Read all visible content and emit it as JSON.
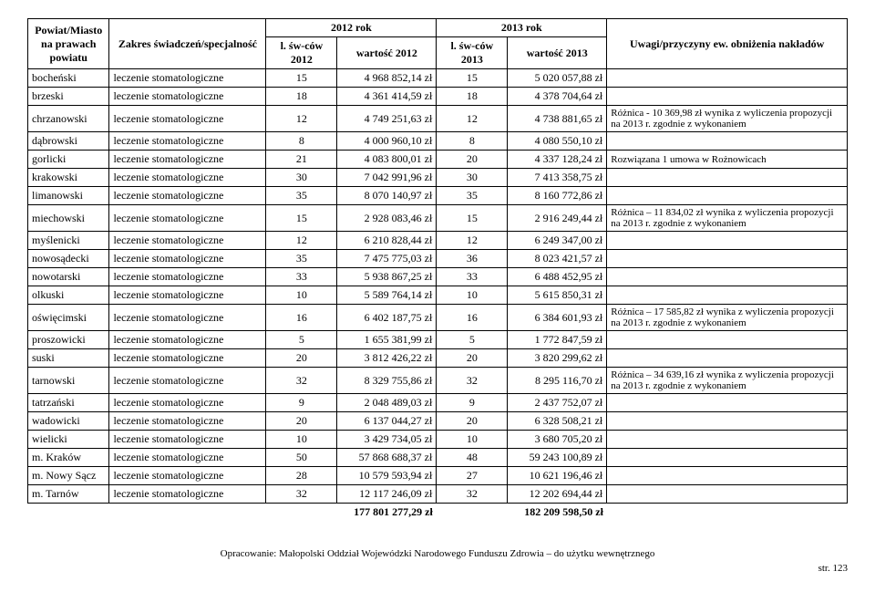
{
  "headers": {
    "powiat": "Powiat/Miasto na prawach powiatu",
    "zakres": "Zakres świadczeń/specjalność",
    "rok2012": "2012 rok",
    "rok2013": "2013 rok",
    "sw2012": "l. św-ców 2012",
    "wart2012": "wartość 2012",
    "sw2013": "l. św-ców 2013",
    "wart2013": "wartość 2013",
    "uwagi": "Uwagi/przyczyny ew. obniżenia nakładów"
  },
  "rows": [
    {
      "p": "bocheński",
      "z": "leczenie stomatologiczne",
      "s12": "15",
      "w12": "4 968 852,14 zł",
      "s13": "15",
      "w13": "5 020 057,88 zł",
      "u": ""
    },
    {
      "p": "brzeski",
      "z": "leczenie stomatologiczne",
      "s12": "18",
      "w12": "4 361 414,59 zł",
      "s13": "18",
      "w13": "4 378 704,64 zł",
      "u": ""
    },
    {
      "p": "chrzanowski",
      "z": "leczenie stomatologiczne",
      "s12": "12",
      "w12": "4 749 251,63 zł",
      "s13": "12",
      "w13": "4 738 881,65 zł",
      "u": "Różnica - 10 369,98 zł wynika z wyliczenia propozycji na 2013 r. zgodnie z wykonaniem"
    },
    {
      "p": "dąbrowski",
      "z": "leczenie stomatologiczne",
      "s12": "8",
      "w12": "4 000 960,10 zł",
      "s13": "8",
      "w13": "4 080 550,10 zł",
      "u": ""
    },
    {
      "p": "gorlicki",
      "z": "leczenie stomatologiczne",
      "s12": "21",
      "w12": "4 083 800,01 zł",
      "s13": "20",
      "w13": "4 337 128,24 zł",
      "u": "Rozwiązana 1 umowa w Rożnowicach"
    },
    {
      "p": "krakowski",
      "z": "leczenie stomatologiczne",
      "s12": "30",
      "w12": "7 042 991,96 zł",
      "s13": "30",
      "w13": "7 413 358,75 zł",
      "u": ""
    },
    {
      "p": "limanowski",
      "z": "leczenie stomatologiczne",
      "s12": "35",
      "w12": "8 070 140,97 zł",
      "s13": "35",
      "w13": "8 160 772,86 zł",
      "u": ""
    },
    {
      "p": "miechowski",
      "z": "leczenie stomatologiczne",
      "s12": "15",
      "w12": "2 928 083,46 zł",
      "s13": "15",
      "w13": "2 916 249,44 zł",
      "u": "Różnica – 11 834,02 zł wynika z wyliczenia propozycji na 2013 r. zgodnie z wykonaniem"
    },
    {
      "p": "myślenicki",
      "z": "leczenie stomatologiczne",
      "s12": "12",
      "w12": "6 210 828,44 zł",
      "s13": "12",
      "w13": "6 249 347,00 zł",
      "u": ""
    },
    {
      "p": "nowosądecki",
      "z": "leczenie stomatologiczne",
      "s12": "35",
      "w12": "7 475 775,03 zł",
      "s13": "36",
      "w13": "8 023 421,57 zł",
      "u": ""
    },
    {
      "p": "nowotarski",
      "z": "leczenie stomatologiczne",
      "s12": "33",
      "w12": "5 938 867,25 zł",
      "s13": "33",
      "w13": "6 488 452,95 zł",
      "u": ""
    },
    {
      "p": "olkuski",
      "z": "leczenie stomatologiczne",
      "s12": "10",
      "w12": "5 589 764,14 zł",
      "s13": "10",
      "w13": "5 615 850,31 zł",
      "u": ""
    },
    {
      "p": "oświęcimski",
      "z": "leczenie stomatologiczne",
      "s12": "16",
      "w12": "6 402 187,75 zł",
      "s13": "16",
      "w13": "6 384 601,93 zł",
      "u": "Różnica – 17 585,82 zł wynika z wyliczenia propozycji na 2013 r. zgodnie z wykonaniem"
    },
    {
      "p": "proszowicki",
      "z": "leczenie stomatologiczne",
      "s12": "5",
      "w12": "1 655 381,99 zł",
      "s13": "5",
      "w13": "1 772 847,59 zł",
      "u": ""
    },
    {
      "p": "suski",
      "z": "leczenie stomatologiczne",
      "s12": "20",
      "w12": "3 812 426,22 zł",
      "s13": "20",
      "w13": "3 820 299,62 zł",
      "u": ""
    },
    {
      "p": "tarnowski",
      "z": "leczenie stomatologiczne",
      "s12": "32",
      "w12": "8 329 755,86 zł",
      "s13": "32",
      "w13": "8 295 116,70 zł",
      "u": "Różnica – 34 639,16 zł wynika z wyliczenia propozycji na 2013 r. zgodnie z wykonaniem"
    },
    {
      "p": "tatrzański",
      "z": "leczenie stomatologiczne",
      "s12": "9",
      "w12": "2 048 489,03 zł",
      "s13": "9",
      "w13": "2 437 752,07 zł",
      "u": ""
    },
    {
      "p": "wadowicki",
      "z": "leczenie stomatologiczne",
      "s12": "20",
      "w12": "6 137 044,27 zł",
      "s13": "20",
      "w13": "6 328 508,21 zł",
      "u": ""
    },
    {
      "p": "wielicki",
      "z": "leczenie stomatologiczne",
      "s12": "10",
      "w12": "3 429 734,05 zł",
      "s13": "10",
      "w13": "3 680 705,20 zł",
      "u": ""
    },
    {
      "p": "m. Kraków",
      "z": "leczenie stomatologiczne",
      "s12": "50",
      "w12": "57 868 688,37 zł",
      "s13": "48",
      "w13": "59 243 100,89 zł",
      "u": ""
    },
    {
      "p": "m. Nowy Sącz",
      "z": "leczenie stomatologiczne",
      "s12": "28",
      "w12": "10 579 593,94 zł",
      "s13": "27",
      "w13": "10 621 196,46 zł",
      "u": ""
    },
    {
      "p": "m. Tarnów",
      "z": "leczenie stomatologiczne",
      "s12": "32",
      "w12": "12 117 246,09 zł",
      "s13": "32",
      "w13": "12 202 694,44 zł",
      "u": ""
    }
  ],
  "sums": {
    "w12": "177 801 277,29 zł",
    "w13": "182 209 598,50 zł"
  },
  "footer": "Opracowanie: Małopolski Oddział Wojewódzki Narodowego Funduszu Zdrowia – do użytku wewnętrznego",
  "page": "str. 123"
}
